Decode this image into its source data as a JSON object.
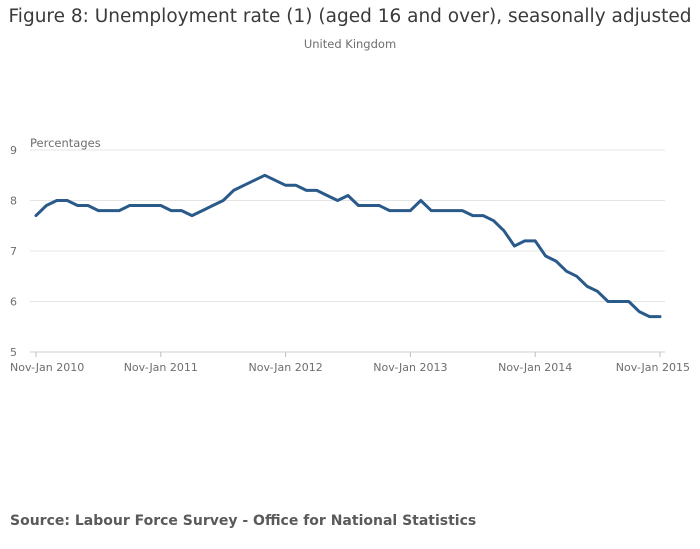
{
  "chart_data": {
    "type": "line",
    "title": "Figure 8: Unemployment rate (1) (aged 16 and over), seasonally adjusted",
    "subtitle": "United Kingdom",
    "ylabel": "Percentages",
    "xlabel": "",
    "ylim": [
      5,
      9
    ],
    "yticks": [
      5,
      6,
      7,
      8,
      9
    ],
    "xtick_labels": [
      "Nov-Jan 2010",
      "Nov-Jan 2011",
      "Nov-Jan 2012",
      "Nov-Jan 2013",
      "Nov-Jan 2014",
      "Nov-Jan 2015"
    ],
    "grid": true,
    "series": [
      {
        "color": "#2a5a8a",
        "values": [
          7.7,
          7.9,
          8.0,
          8.0,
          7.9,
          7.9,
          7.8,
          7.8,
          7.8,
          7.9,
          7.9,
          7.9,
          7.9,
          7.8,
          7.8,
          7.7,
          7.8,
          7.9,
          8.0,
          8.2,
          8.3,
          8.4,
          8.5,
          8.4,
          8.3,
          8.3,
          8.2,
          8.2,
          8.1,
          8.0,
          8.1,
          7.9,
          7.9,
          7.9,
          7.8,
          7.8,
          7.8,
          8.0,
          7.8,
          7.8,
          7.8,
          7.8,
          7.7,
          7.7,
          7.6,
          7.4,
          7.1,
          7.2,
          7.2,
          6.9,
          6.8,
          6.6,
          6.5,
          6.3,
          6.2,
          6.0,
          6.0,
          6.0,
          5.8,
          5.7,
          5.7
        ]
      }
    ]
  },
  "source": "Source: Labour Force Survey - Office for National Statistics"
}
